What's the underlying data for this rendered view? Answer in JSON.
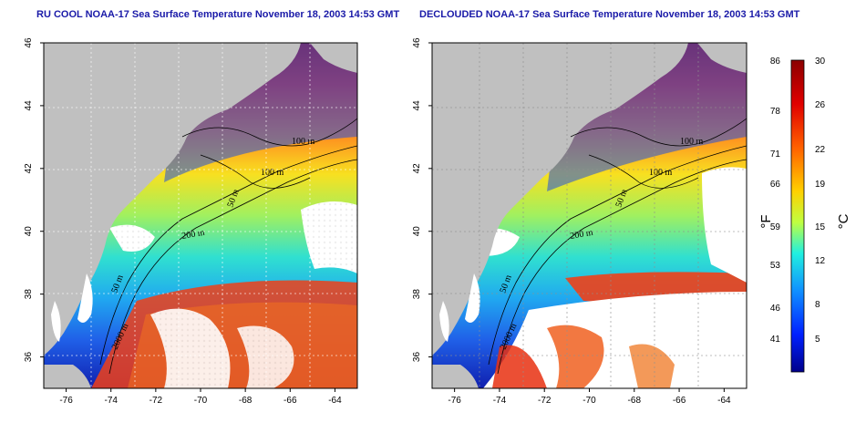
{
  "titles": {
    "left": "RU COOL NOAA-17 Sea Surface Temperature November 18, 2003 14:53 GMT",
    "right": "DECLOUDED NOAA-17 Sea Surface Temperature November 18, 2003 14:53 GMT"
  },
  "map": {
    "lon_ticks": [
      "-76",
      "-74",
      "-72",
      "-70",
      "-68",
      "-66",
      "-64"
    ],
    "lat_ticks": [
      "36",
      "38",
      "40",
      "42",
      "44",
      "46"
    ],
    "lon_range": [
      -77,
      -63
    ],
    "lat_range": [
      35,
      46
    ],
    "contour_labels": {
      "left": [
        "100 m",
        "100 m",
        "50 m",
        "200 m",
        "50 m",
        "2000 m"
      ],
      "right": [
        "100 m",
        "100 m",
        "50 m",
        "200 m",
        "50 m",
        "2000 m"
      ]
    }
  },
  "colorbar": {
    "fahrenheit_ticks": [
      "86",
      "78",
      "71",
      "66",
      "59",
      "53",
      "46",
      "41"
    ],
    "celsius_ticks": [
      "30",
      "26",
      "22",
      "19",
      "15",
      "12",
      "8",
      "5"
    ],
    "unit_f": "°F",
    "unit_c": "°C",
    "colors": [
      "#8b0000",
      "#ff0000",
      "#ff7f00",
      "#ffff00",
      "#00ffff",
      "#0080ff",
      "#0000ff",
      "#00008b"
    ]
  },
  "colors": {
    "land": "#c0c0c0",
    "title": "#1a1aa8"
  }
}
